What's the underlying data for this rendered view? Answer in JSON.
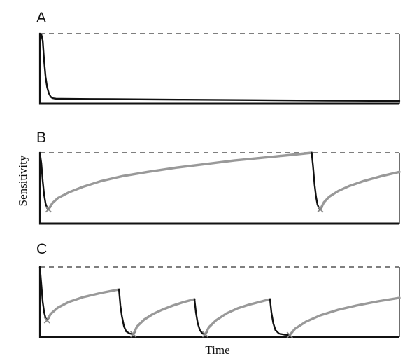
{
  "chart_data": {
    "type": "line",
    "ylabel": "Sensitivity",
    "xlabel": "Time",
    "grid": false,
    "ylim": [
      0,
      1
    ],
    "xlim": [
      0,
      100
    ],
    "reference_line": {
      "y": 1.0,
      "style": "dashed"
    },
    "colors": {
      "decay": "#111111",
      "recovery": "#999999",
      "reference": "#555555",
      "marker": "#888888"
    },
    "panels": [
      {
        "label": "A",
        "decay": [
          [
            0.0,
            1.0
          ],
          [
            0.4,
            0.99
          ],
          [
            0.8,
            0.9
          ],
          [
            1.2,
            0.6
          ],
          [
            1.6,
            0.38
          ],
          [
            2.0,
            0.24
          ],
          [
            2.5,
            0.15
          ],
          [
            3.0,
            0.1
          ],
          [
            3.5,
            0.08
          ],
          [
            4.0,
            0.075
          ],
          [
            4.5,
            0.072
          ],
          [
            6.0,
            0.07
          ],
          [
            20,
            0.065
          ],
          [
            40,
            0.058
          ],
          [
            60,
            0.052
          ],
          [
            80,
            0.045
          ],
          [
            100,
            0.04
          ]
        ],
        "recovery": [],
        "stimuli": []
      },
      {
        "label": "B",
        "decay": [
          [
            0.0,
            1.0
          ],
          [
            0.4,
            0.85
          ],
          [
            0.8,
            0.6
          ],
          [
            1.2,
            0.4
          ],
          [
            1.6,
            0.28
          ],
          [
            2.0,
            0.22
          ],
          [
            2.4,
            0.2
          ]
        ],
        "decay2": [
          [
            75.6,
            1.0
          ],
          [
            76.0,
            0.8
          ],
          [
            76.4,
            0.55
          ],
          [
            76.8,
            0.38
          ],
          [
            77.2,
            0.27
          ],
          [
            77.6,
            0.22
          ],
          [
            78.0,
            0.2
          ]
        ],
        "recovery": [
          [
            2.4,
            0.2
          ],
          [
            3.5,
            0.29
          ],
          [
            5,
            0.36
          ],
          [
            8,
            0.44
          ],
          [
            12,
            0.52
          ],
          [
            17,
            0.6
          ],
          [
            23,
            0.67
          ],
          [
            30,
            0.73
          ],
          [
            38,
            0.79
          ],
          [
            46,
            0.84
          ],
          [
            54,
            0.89
          ],
          [
            62,
            0.93
          ],
          [
            70,
            0.97
          ],
          [
            75.6,
            1.0
          ]
        ],
        "recovery2": [
          [
            78.0,
            0.2
          ],
          [
            79,
            0.3
          ],
          [
            80.5,
            0.38
          ],
          [
            83,
            0.46
          ],
          [
            86,
            0.53
          ],
          [
            90,
            0.6
          ],
          [
            95,
            0.67
          ],
          [
            100,
            0.73
          ]
        ],
        "stimuli": [
          2.4,
          78.0
        ]
      },
      {
        "label": "C",
        "segments": [
          {
            "decay": [
              [
                0.0,
                1.0
              ],
              [
                0.4,
                0.75
              ],
              [
                0.8,
                0.5
              ],
              [
                1.2,
                0.35
              ],
              [
                1.6,
                0.27
              ],
              [
                2.0,
                0.24
              ]
            ],
            "recovery": [
              [
                2.0,
                0.24
              ],
              [
                3,
                0.33
              ],
              [
                5,
                0.42
              ],
              [
                8,
                0.5
              ],
              [
                12,
                0.57
              ],
              [
                17,
                0.63
              ],
              [
                22,
                0.68
              ]
            ]
          },
          {
            "decay": [
              [
                22.0,
                0.68
              ],
              [
                22.4,
                0.45
              ],
              [
                22.8,
                0.3
              ],
              [
                23.4,
                0.15
              ],
              [
                24.0,
                0.08
              ],
              [
                25.0,
                0.05
              ],
              [
                26.0,
                0.04
              ]
            ],
            "recovery": [
              [
                26.0,
                0.04
              ],
              [
                27,
                0.15
              ],
              [
                29,
                0.25
              ],
              [
                31.5,
                0.33
              ],
              [
                34,
                0.39
              ],
              [
                37,
                0.45
              ],
              [
                40,
                0.5
              ],
              [
                43,
                0.54
              ]
            ]
          },
          {
            "decay": [
              [
                43.0,
                0.54
              ],
              [
                43.4,
                0.35
              ],
              [
                43.9,
                0.2
              ],
              [
                44.5,
                0.1
              ],
              [
                45.2,
                0.05
              ],
              [
                46.0,
                0.04
              ]
            ],
            "recovery": [
              [
                46.0,
                0.04
              ],
              [
                47,
                0.14
              ],
              [
                49,
                0.24
              ],
              [
                52,
                0.34
              ],
              [
                55,
                0.41
              ],
              [
                58,
                0.46
              ],
              [
                61,
                0.5
              ],
              [
                64,
                0.54
              ]
            ]
          },
          {
            "decay": [
              [
                64.0,
                0.54
              ],
              [
                64.4,
                0.35
              ],
              [
                64.9,
                0.2
              ],
              [
                65.5,
                0.1
              ],
              [
                66.5,
                0.05
              ],
              [
                68.0,
                0.035
              ],
              [
                69.5,
                0.03
              ]
            ],
            "recovery": [
              [
                69.5,
                0.03
              ],
              [
                71,
                0.12
              ],
              [
                74,
                0.22
              ],
              [
                78,
                0.31
              ],
              [
                83,
                0.39
              ],
              [
                88,
                0.45
              ],
              [
                94,
                0.51
              ],
              [
                100,
                0.56
              ]
            ]
          }
        ],
        "stimuli": [
          2.0,
          26.0,
          46.0,
          69.5
        ]
      }
    ]
  }
}
